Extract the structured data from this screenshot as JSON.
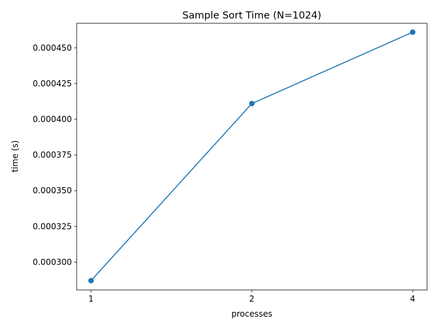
{
  "chart_data": {
    "type": "line",
    "title": "Sample Sort Time (N=1024)",
    "xlabel": "processes",
    "ylabel": "time (s)",
    "categories": [
      "1",
      "2",
      "4"
    ],
    "series": [
      {
        "name": "time",
        "values": [
          0.000287,
          0.000411,
          0.000461
        ],
        "color": "#1f77b4"
      }
    ],
    "ylim": [
      0.0002805,
      0.0004672
    ],
    "yticks": [
      0.0003,
      0.000325,
      0.00035,
      0.000375,
      0.0004,
      0.000425,
      0.00045
    ],
    "ytick_labels": [
      "0.000300",
      "0.000325",
      "0.000350",
      "0.000375",
      "0.000400",
      "0.000425",
      "0.000450"
    ],
    "grid": false,
    "legend": "none"
  }
}
